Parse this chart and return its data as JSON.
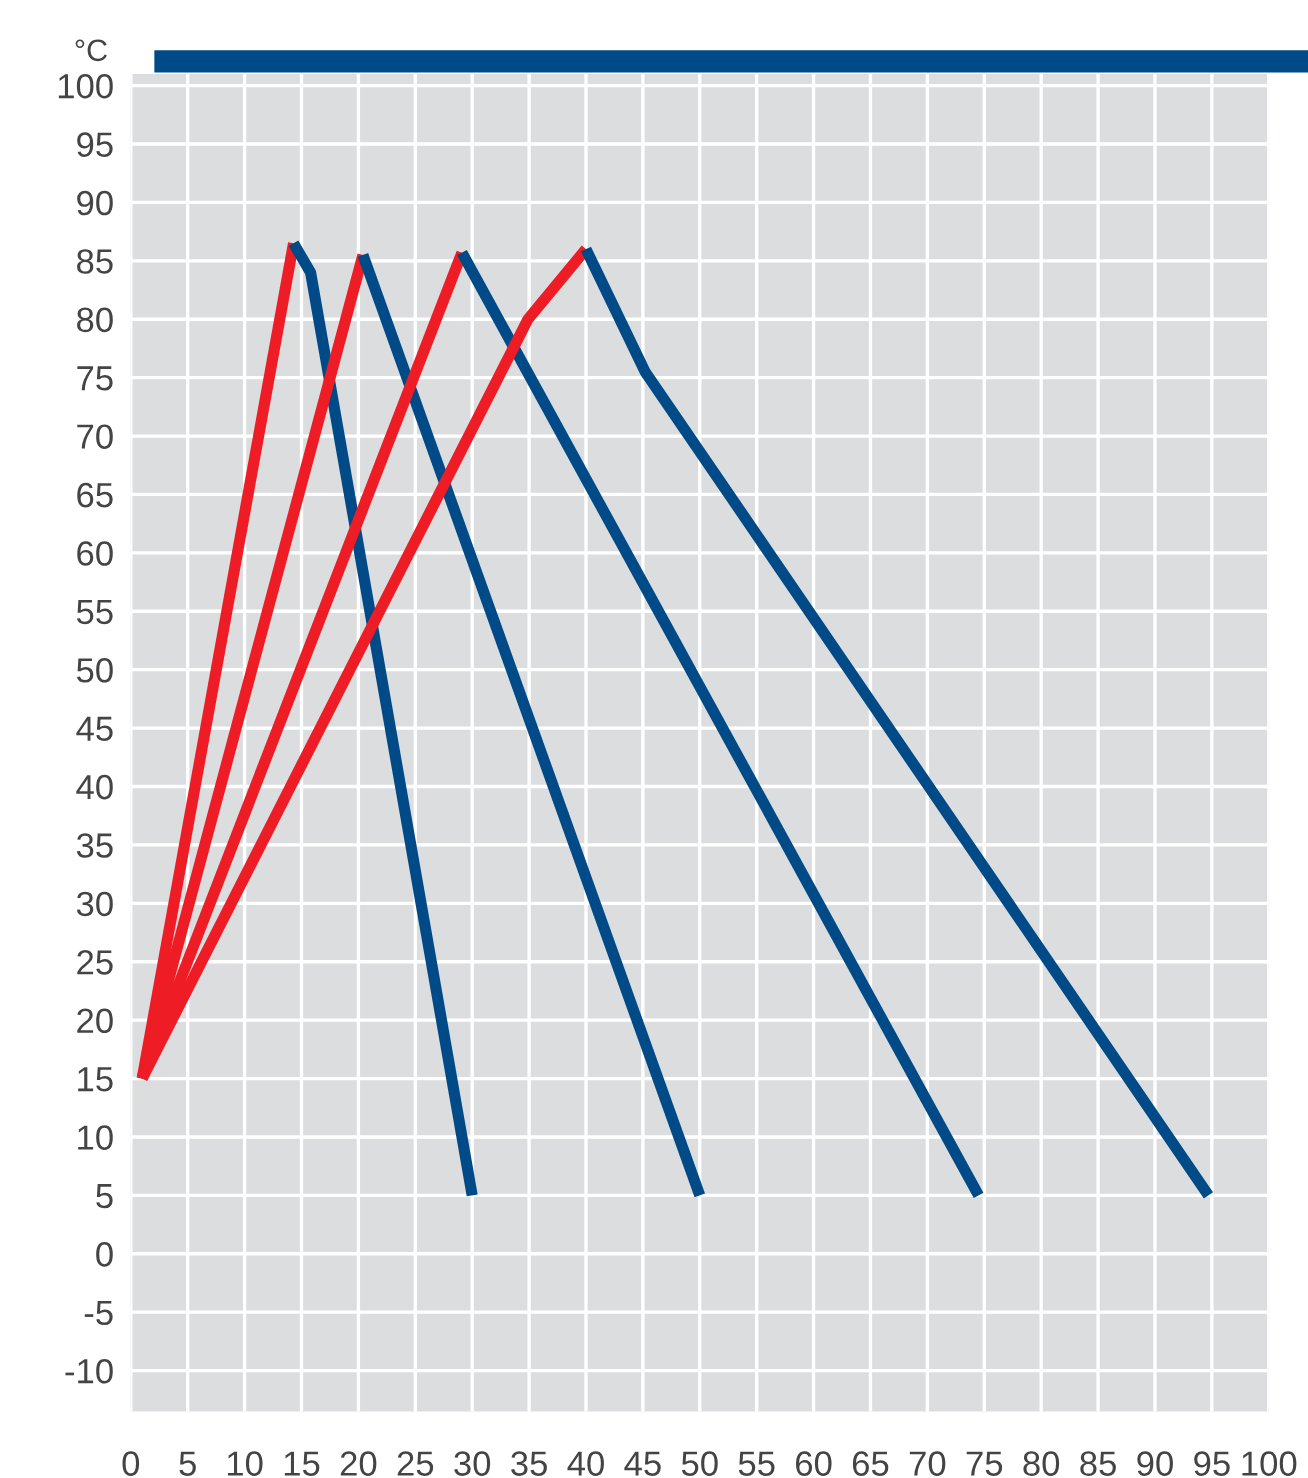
{
  "chart_data": {
    "type": "line",
    "ylabel": "°C",
    "xlim": [
      0,
      100
    ],
    "ylim": [
      -13.5,
      101
    ],
    "xticks": [
      0,
      5,
      10,
      15,
      20,
      25,
      30,
      35,
      40,
      45,
      50,
      55,
      60,
      65,
      70,
      75,
      80,
      85,
      90,
      95,
      100
    ],
    "yticks": [
      -10,
      -5,
      0,
      5,
      10,
      15,
      20,
      25,
      30,
      35,
      40,
      45,
      50,
      55,
      60,
      65,
      70,
      75,
      80,
      85,
      90,
      95,
      100
    ],
    "grid": true,
    "legend": false,
    "marker": "none",
    "line_style": "solid",
    "series": [
      {
        "color": "#ee1c25",
        "x": [
          1,
          14.3
        ],
        "values": [
          15,
          86.5
        ]
      },
      {
        "color": "#004b87",
        "x": [
          14.3,
          15.8,
          30
        ],
        "values": [
          86.5,
          84,
          5
        ]
      },
      {
        "color": "#ee1c25",
        "x": [
          1,
          20.4
        ],
        "values": [
          15,
          85.5
        ]
      },
      {
        "color": "#004b87",
        "x": [
          20.4,
          50
        ],
        "values": [
          85.5,
          5
        ]
      },
      {
        "color": "#ee1c25",
        "x": [
          1,
          29.1
        ],
        "values": [
          15,
          85.7
        ]
      },
      {
        "color": "#004b87",
        "x": [
          29.1,
          74.5
        ],
        "values": [
          85.7,
          5
        ]
      },
      {
        "color": "#ee1c25",
        "x": [
          1,
          34.9,
          40
        ],
        "values": [
          15,
          80,
          86
        ]
      },
      {
        "color": "#004b87",
        "x": [
          40,
          45.2,
          94.7
        ],
        "values": [
          86,
          75.5,
          5
        ]
      }
    ]
  }
}
